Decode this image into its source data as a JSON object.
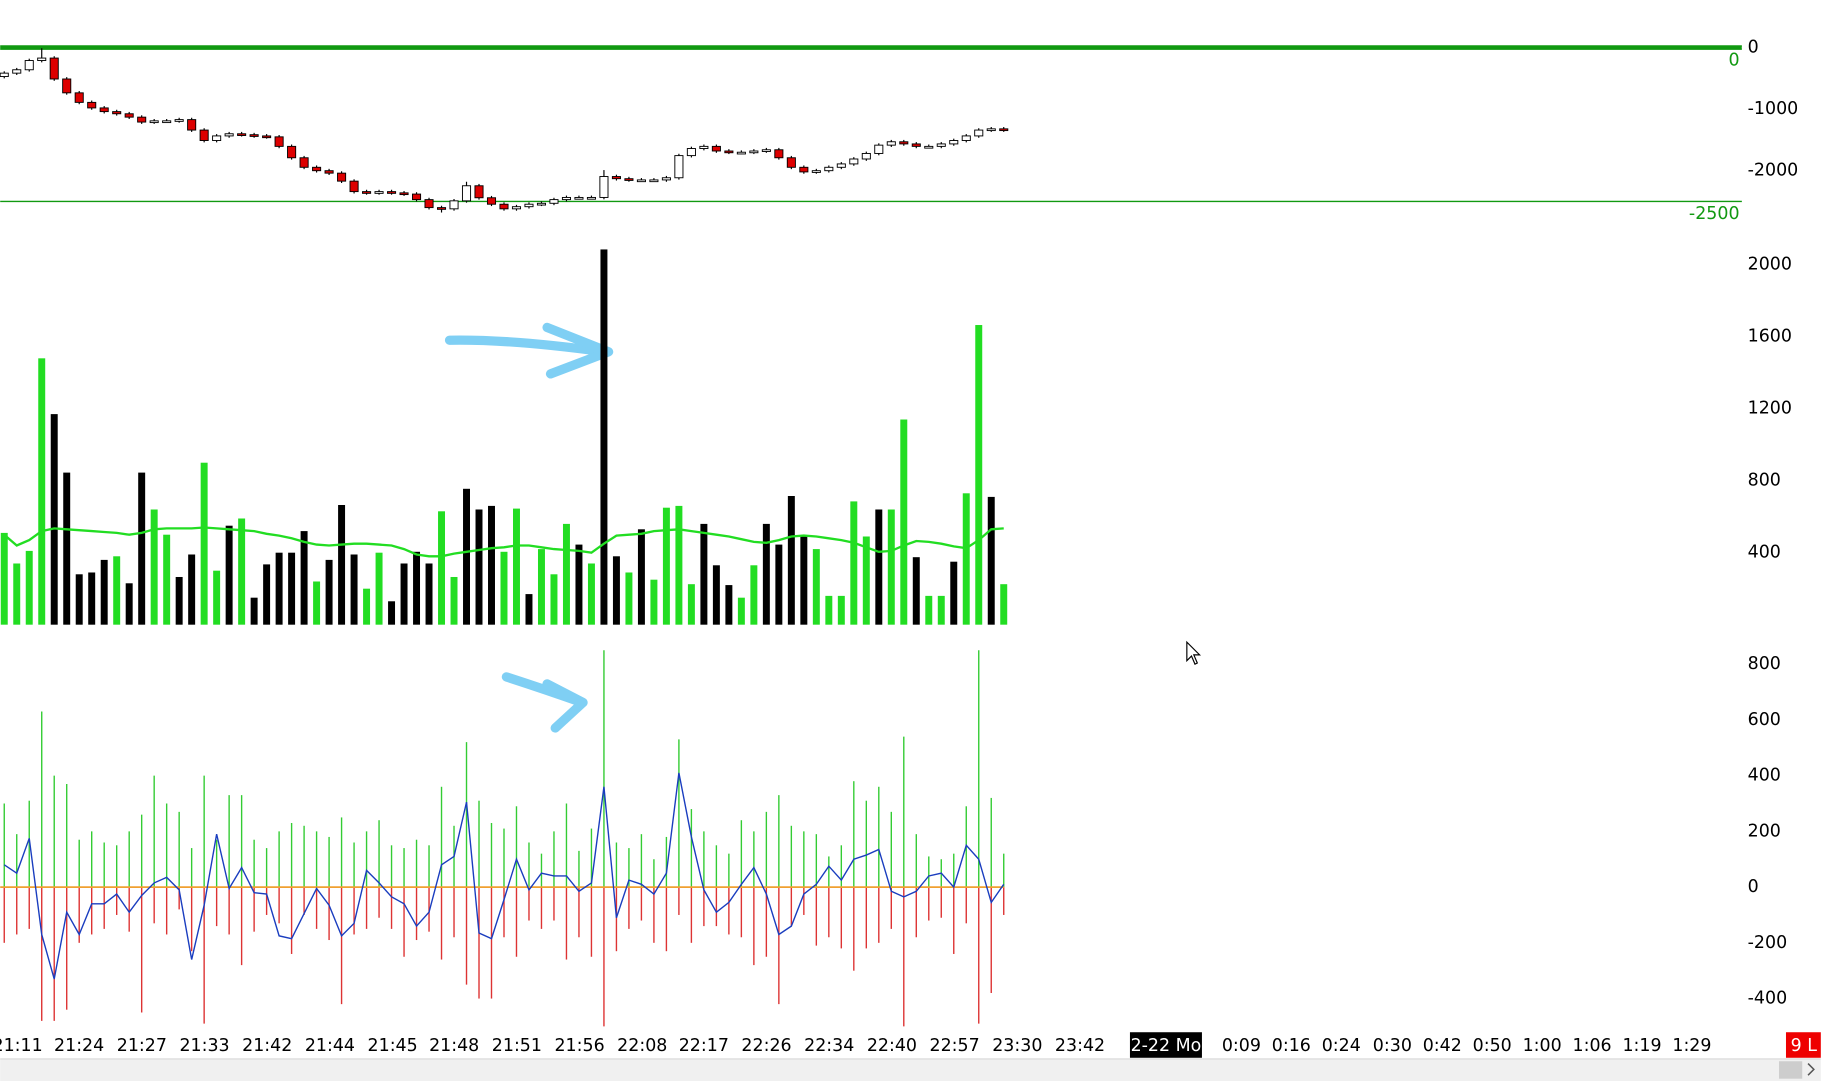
{
  "chart_data": [
    {
      "type": "candlestick",
      "open": [
        -470,
        -415,
        -360,
        -210,
        -170,
        -510,
        -735,
        -890,
        -980,
        -1040,
        -1075,
        -1130,
        -1210,
        -1190,
        -1190,
        -1170,
        -1340,
        -1510,
        -1435,
        -1400,
        -1415,
        -1435,
        -1450,
        -1605,
        -1790,
        -1945,
        -2000,
        -2040,
        -2170,
        -2340,
        -2360,
        -2340,
        -2360,
        -2380,
        -2470,
        -2600,
        -2620,
        -2490,
        -2245,
        -2440,
        -2545,
        -2620,
        -2585,
        -2545,
        -2530,
        -2470,
        -2435,
        -2435,
        -2435,
        -2095,
        -2130,
        -2150,
        -2150,
        -2150,
        -2115,
        -1755,
        -1640,
        -1605,
        -1680,
        -1700,
        -1700,
        -1680,
        -1660,
        -1790,
        -1945,
        -2020,
        -2000,
        -1945,
        -1890,
        -1810,
        -1720,
        -1585,
        -1530,
        -1565,
        -1605,
        -1605,
        -1565,
        -1510,
        -1435,
        -1340,
        -1320
      ],
      "high": [
        -385,
        -330,
        -180,
        -10,
        -140,
        -480,
        -705,
        -860,
        -950,
        -1010,
        -1045,
        -1100,
        -1160,
        -1160,
        -1140,
        -1140,
        -1310,
        -1405,
        -1370,
        -1370,
        -1385,
        -1405,
        -1420,
        -1575,
        -1760,
        -1915,
        -1970,
        -2010,
        -2140,
        -2310,
        -2310,
        -2310,
        -2330,
        -2350,
        -2440,
        -2570,
        -2460,
        -2180,
        -2215,
        -2410,
        -2515,
        -2555,
        -2515,
        -2500,
        -2440,
        -2405,
        -2405,
        -2405,
        -1990,
        -2065,
        -2100,
        -2120,
        -2120,
        -2085,
        -1725,
        -1610,
        -1575,
        -1575,
        -1650,
        -1670,
        -1650,
        -1630,
        -1630,
        -1760,
        -1915,
        -1970,
        -1915,
        -1860,
        -1780,
        -1690,
        -1555,
        -1500,
        -1500,
        -1535,
        -1575,
        -1535,
        -1480,
        -1405,
        -1310,
        -1290,
        -1290
      ],
      "low": [
        -500,
        -445,
        -390,
        -240,
        -540,
        -765,
        -920,
        -1010,
        -1070,
        -1105,
        -1160,
        -1240,
        -1240,
        -1220,
        -1220,
        -1370,
        -1540,
        -1540,
        -1465,
        -1445,
        -1465,
        -1480,
        -1635,
        -1820,
        -1975,
        -2030,
        -2070,
        -2200,
        -2370,
        -2390,
        -2390,
        -2390,
        -2410,
        -2500,
        -2630,
        -2680,
        -2650,
        -2520,
        -2470,
        -2575,
        -2650,
        -2650,
        -2615,
        -2575,
        -2560,
        -2500,
        -2465,
        -2465,
        -2465,
        -2160,
        -2180,
        -2180,
        -2180,
        -2180,
        -2145,
        -1785,
        -1670,
        -1710,
        -1730,
        -1730,
        -1730,
        -1710,
        -1820,
        -1975,
        -2050,
        -2050,
        -2030,
        -1975,
        -1920,
        -1840,
        -1750,
        -1615,
        -1595,
        -1635,
        -1635,
        -1635,
        -1595,
        -1540,
        -1465,
        -1370,
        -1370
      ],
      "close": [
        -415,
        -360,
        -210,
        -170,
        -510,
        -735,
        -890,
        -980,
        -1040,
        -1075,
        -1130,
        -1210,
        -1190,
        -1190,
        -1170,
        -1340,
        -1510,
        -1435,
        -1400,
        -1415,
        -1435,
        -1450,
        -1605,
        -1790,
        -1945,
        -2000,
        -2040,
        -2170,
        -2340,
        -2360,
        -2340,
        -2360,
        -2380,
        -2470,
        -2600,
        -2620,
        -2490,
        -2245,
        -2440,
        -2545,
        -2620,
        -2585,
        -2545,
        -2530,
        -2470,
        -2435,
        -2435,
        -2435,
        -2095,
        -2130,
        -2150,
        -2150,
        -2150,
        -2115,
        -1755,
        -1640,
        -1605,
        -1680,
        -1700,
        -1700,
        -1680,
        -1660,
        -1790,
        -1945,
        -2020,
        -2000,
        -1945,
        -1890,
        -1810,
        -1720,
        -1585,
        -1530,
        -1565,
        -1605,
        -1605,
        -1565,
        -1510,
        -1435,
        -1340,
        -1320,
        -1340
      ],
      "up_color": "#ffffff",
      "down_color": "#dd0000",
      "ylim": [
        -2800,
        500
      ],
      "yticks": [
        0,
        -1000,
        -2000
      ],
      "levels": [
        0,
        -2500
      ],
      "level_color": "#119911"
    },
    {
      "type": "bar",
      "values": [
        510,
        340,
        410,
        1480,
        1170,
        845,
        280,
        290,
        360,
        380,
        230,
        845,
        640,
        500,
        265,
        390,
        900,
        300,
        550,
        590,
        150,
        335,
        400,
        400,
        520,
        240,
        360,
        665,
        390,
        200,
        400,
        130,
        340,
        405,
        340,
        630,
        265,
        755,
        640,
        660,
        405,
        645,
        170,
        420,
        280,
        560,
        445,
        340,
        2085,
        380,
        290,
        530,
        250,
        650,
        660,
        225,
        560,
        330,
        220,
        150,
        330,
        560,
        445,
        715,
        490,
        420,
        160,
        160,
        685,
        490,
        640,
        640,
        1140,
        375,
        160,
        160,
        350,
        730,
        1665,
        710,
        225
      ],
      "colors": [
        "#22dd22",
        "#22dd22",
        "#22dd22",
        "#22dd22",
        "#000000",
        "#000000",
        "#000000",
        "#000000",
        "#000000",
        "#22dd22",
        "#000000",
        "#000000",
        "#22dd22",
        "#22dd22",
        "#000000",
        "#000000",
        "#22dd22",
        "#22dd22",
        "#000000",
        "#22dd22",
        "#000000",
        "#000000",
        "#000000",
        "#000000",
        "#000000",
        "#22dd22",
        "#000000",
        "#000000",
        "#000000",
        "#22dd22",
        "#22dd22",
        "#000000",
        "#000000",
        "#000000",
        "#000000",
        "#22dd22",
        "#22dd22",
        "#000000",
        "#000000",
        "#000000",
        "#22dd22",
        "#22dd22",
        "#000000",
        "#22dd22",
        "#22dd22",
        "#22dd22",
        "#000000",
        "#22dd22",
        "#000000",
        "#000000",
        "#22dd22",
        "#000000",
        "#22dd22",
        "#22dd22",
        "#22dd22",
        "#22dd22",
        "#000000",
        "#000000",
        "#000000",
        "#22dd22",
        "#22dd22",
        "#000000",
        "#000000",
        "#000000",
        "#000000",
        "#22dd22",
        "#22dd22",
        "#22dd22",
        "#22dd22",
        "#22dd22",
        "#000000",
        "#22dd22",
        "#22dd22",
        "#000000",
        "#22dd22",
        "#22dd22",
        "#000000",
        "#22dd22",
        "#22dd22",
        "#000000",
        "#22dd22"
      ],
      "average": [
        500,
        440,
        470,
        520,
        535,
        530,
        525,
        520,
        515,
        510,
        500,
        510,
        530,
        535,
        535,
        535,
        540,
        535,
        530,
        525,
        520,
        505,
        495,
        480,
        460,
        445,
        440,
        445,
        450,
        450,
        445,
        440,
        420,
        390,
        380,
        380,
        395,
        405,
        415,
        425,
        430,
        440,
        440,
        430,
        420,
        415,
        410,
        400,
        450,
        495,
        500,
        505,
        520,
        525,
        530,
        520,
        510,
        500,
        490,
        475,
        460,
        455,
        470,
        490,
        495,
        490,
        480,
        470,
        455,
        430,
        405,
        410,
        440,
        465,
        460,
        450,
        435,
        425,
        470,
        530,
        535
      ],
      "average_color": "#22dd22",
      "ylim": [
        0,
        2100
      ],
      "yticks": [
        400,
        800,
        1200,
        1600,
        2000
      ]
    },
    {
      "type": "delta",
      "buy": [
        300,
        190,
        310,
        630,
        400,
        370,
        170,
        200,
        160,
        150,
        200,
        260,
        400,
        300,
        270,
        140,
        400,
        170,
        330,
        330,
        170,
        140,
        200,
        230,
        220,
        200,
        180,
        250,
        160,
        200,
        240,
        150,
        140,
        170,
        150,
        360,
        220,
        520,
        310,
        230,
        210,
        290,
        160,
        120,
        200,
        300,
        130,
        210,
        850,
        160,
        140,
        190,
        100,
        180,
        530,
        280,
        200,
        150,
        120,
        240,
        200,
        270,
        330,
        220,
        200,
        190,
        110,
        150,
        380,
        310,
        360,
        270,
        540,
        190,
        110,
        100,
        120,
        290,
        850,
        320,
        120
      ],
      "sell": [
        -200,
        -170,
        -150,
        -480,
        -480,
        -440,
        -200,
        -170,
        -150,
        -100,
        -160,
        -450,
        -130,
        -170,
        -80,
        -230,
        -490,
        -140,
        -170,
        -280,
        -160,
        -100,
        -130,
        -240,
        -100,
        -150,
        -190,
        -420,
        -170,
        -150,
        -110,
        -150,
        -250,
        -190,
        -160,
        -260,
        -180,
        -350,
        -400,
        -400,
        -180,
        -250,
        -120,
        -150,
        -120,
        -260,
        -180,
        -250,
        -500,
        -230,
        -150,
        -120,
        -200,
        -230,
        -100,
        -200,
        -140,
        -140,
        -170,
        -180,
        -280,
        -250,
        -420,
        -140,
        -100,
        -210,
        -180,
        -220,
        -300,
        -220,
        -200,
        -150,
        -500,
        -180,
        -120,
        -110,
        -240,
        -130,
        -490,
        -380,
        -100
      ],
      "net": [
        80,
        50,
        175,
        -170,
        -330,
        -90,
        -170,
        -60,
        -60,
        -25,
        -90,
        -30,
        15,
        35,
        -10,
        -260,
        -65,
        190,
        -5,
        70,
        -20,
        -25,
        -175,
        -185,
        -95,
        -5,
        -65,
        -175,
        -130,
        60,
        15,
        -35,
        -60,
        -140,
        -90,
        80,
        110,
        305,
        -165,
        -185,
        -45,
        100,
        -10,
        50,
        40,
        40,
        -15,
        15,
        360,
        -110,
        25,
        10,
        -25,
        50,
        410,
        180,
        -10,
        -90,
        -55,
        10,
        70,
        -25,
        -170,
        -140,
        -25,
        10,
        75,
        25,
        100,
        115,
        135,
        -15,
        -35,
        -15,
        40,
        50,
        0,
        150,
        100,
        -55,
        10
      ],
      "buy_color": "#33cc33",
      "sell_color": "#dd3333",
      "net_color": "#1a3dbf",
      "zero_line_color": "#f0a030",
      "ylim": [
        -500,
        900
      ],
      "yticks": [
        -400,
        -200,
        0,
        200,
        400,
        600,
        800
      ]
    }
  ],
  "x_axis": {
    "labels": [
      "21:11",
      "21:24",
      "21:27",
      "21:33",
      "21:42",
      "21:44",
      "21:45",
      "21:48",
      "21:51",
      "21:56",
      "22:08",
      "22:17",
      "22:26",
      "22:34",
      "22:40",
      "22:57",
      "23:30",
      "23:42",
      "2-22 Mo",
      "0:09",
      "0:16",
      "0:24",
      "0:30",
      "0:42",
      "0:50",
      "1:00",
      "1:06",
      "1:19",
      "1:29"
    ],
    "highlight_index": 18
  },
  "corner_label": "9 L"
}
